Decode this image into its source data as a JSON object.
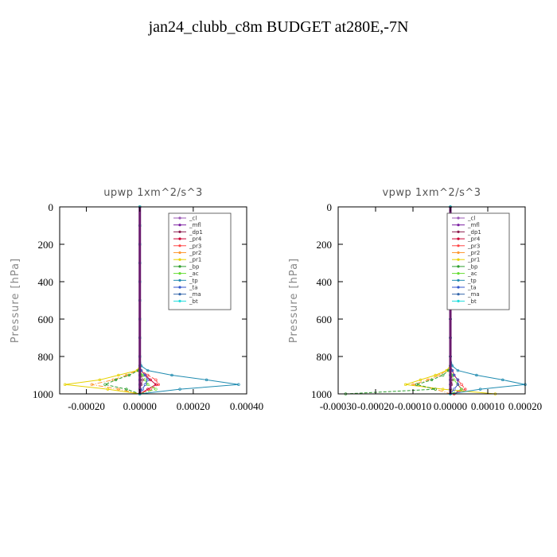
{
  "figure": {
    "title": "jan24_clubb_c8m  BUDGET at280E,-7N"
  },
  "chart_data": [
    {
      "type": "line",
      "title": "upwp   1xm^2/s^3",
      "ylabel": "Pressure [hPa]",
      "xlabel": "",
      "xlim": [
        -0.0003,
        0.0004
      ],
      "ylim": [
        1000,
        0
      ],
      "xticks": [
        -0.0002,
        0.0,
        0.0002,
        0.0004
      ],
      "xtick_labels": [
        "-0.00020",
        "0.00000",
        "0.00020",
        "0.00040"
      ],
      "yticks": [
        0,
        200,
        400,
        600,
        800,
        1000
      ],
      "ytick_labels": [
        "0",
        "200",
        "400",
        "600",
        "800",
        "1000"
      ],
      "grid": false,
      "legend_position": "top-right",
      "pressure": [
        0,
        100,
        200,
        300,
        400,
        500,
        600,
        700,
        800,
        850,
        875,
        900,
        925,
        950,
        975,
        1000
      ],
      "series": [
        {
          "name": "_cl",
          "color": "#9b59b6",
          "values": [
            0,
            0,
            0,
            0,
            0,
            0,
            0,
            0,
            0,
            0,
            0,
            0,
            0,
            0,
            0,
            0
          ]
        },
        {
          "name": "_mfl",
          "color": "#7b1fa2",
          "values": [
            0,
            0,
            0,
            0,
            0,
            0,
            0,
            0,
            0,
            0,
            0,
            0,
            0,
            0,
            0,
            0
          ]
        },
        {
          "name": "_dp1",
          "color": "#8e2050",
          "values": [
            0,
            0,
            0,
            0,
            0,
            0,
            0,
            0,
            0,
            0,
            0,
            5e-06,
            1e-05,
            5e-06,
            0,
            0
          ]
        },
        {
          "name": "_pr4",
          "color": "#cc0033",
          "values": [
            0,
            0,
            0,
            0,
            0,
            0,
            0,
            0,
            0,
            0,
            5e-06,
            2e-05,
            4e-05,
            6e-05,
            3e-05,
            0
          ]
        },
        {
          "name": "_pr3",
          "color": "#ff4444",
          "values": [
            0,
            0,
            0,
            0,
            0,
            0,
            0,
            0,
            0,
            0,
            5e-06,
            3e-05,
            6e-05,
            7e-05,
            4e-05,
            0
          ]
        },
        {
          "name": "_pr2",
          "color": "#ff9933",
          "values": [
            0,
            0,
            0,
            0,
            0,
            0,
            0,
            0,
            0,
            0,
            -1e-05,
            -5e-05,
            -0.0001,
            -0.00018,
            -8e-05,
            0
          ]
        },
        {
          "name": "_pr1",
          "color": "#e6d200",
          "values": [
            0,
            0,
            0,
            0,
            0,
            0,
            0,
            0,
            0,
            0,
            -1e-05,
            -8e-05,
            -0.00015,
            -0.00028,
            -0.00012,
            0
          ]
        },
        {
          "name": "_bp",
          "color": "#2e9e2e",
          "values": [
            0,
            0,
            0,
            0,
            0,
            0,
            0,
            0,
            0,
            0,
            -5e-06,
            -4e-05,
            -9e-05,
            -0.00013,
            -5e-05,
            0
          ]
        },
        {
          "name": "_ac",
          "color": "#66dd33",
          "values": [
            0,
            0,
            0,
            0,
            0,
            0,
            0,
            0,
            0,
            0,
            0,
            1e-05,
            2e-05,
            3e-05,
            6e-05,
            0
          ]
        },
        {
          "name": "_tp",
          "color": "#1f8bb0",
          "values": [
            0,
            0,
            0,
            0,
            0,
            0,
            0,
            0,
            0,
            5e-06,
            3e-05,
            0.00012,
            0.00025,
            0.00037,
            0.00015,
            0
          ]
        },
        {
          "name": "_ta",
          "color": "#3355cc",
          "values": [
            0,
            0,
            0,
            0,
            0,
            0,
            0,
            0,
            0,
            0,
            5e-06,
            2e-05,
            3e-05,
            2e-05,
            1e-05,
            0
          ]
        },
        {
          "name": "_ma",
          "color": "#3366aa",
          "values": [
            0,
            0,
            0,
            0,
            0,
            0,
            0,
            0,
            0,
            0,
            0,
            0,
            0,
            0,
            0,
            0
          ]
        },
        {
          "name": "_bt",
          "color": "#22dddd",
          "values": [
            0,
            0,
            0,
            0,
            0,
            0,
            0,
            0,
            0,
            0,
            0,
            0,
            0,
            0,
            0,
            0
          ]
        }
      ]
    },
    {
      "type": "line",
      "title": "vpwp   1xm^2/s^3",
      "ylabel": "Pressure [hPa]",
      "xlabel": "",
      "xlim": [
        -0.0003,
        0.0002
      ],
      "ylim": [
        1000,
        0
      ],
      "xticks": [
        -0.0003,
        -0.0002,
        -0.0001,
        0.0,
        0.0001,
        0.0002
      ],
      "xtick_labels": [
        "-0.00030",
        "-0.00020",
        "-0.00010",
        "0.00000",
        "0.00010",
        "0.00020"
      ],
      "yticks": [
        0,
        200,
        400,
        600,
        800,
        1000
      ],
      "ytick_labels": [
        "0",
        "200",
        "400",
        "600",
        "800",
        "1000"
      ],
      "grid": false,
      "legend_position": "top-right",
      "pressure": [
        0,
        100,
        200,
        300,
        400,
        500,
        600,
        700,
        800,
        850,
        875,
        900,
        925,
        950,
        975,
        1000
      ],
      "series": [
        {
          "name": "_cl",
          "color": "#9b59b6",
          "values": [
            0,
            0,
            0,
            0,
            0,
            0,
            0,
            0,
            0,
            0,
            0,
            0,
            0,
            0,
            0,
            0
          ]
        },
        {
          "name": "_mfl",
          "color": "#7b1fa2",
          "values": [
            0,
            0,
            0,
            0,
            0,
            0,
            0,
            0,
            0,
            0,
            0,
            0,
            0,
            0,
            0,
            0
          ]
        },
        {
          "name": "_dp1",
          "color": "#8e2050",
          "values": [
            0,
            0,
            0,
            0,
            0,
            0,
            0,
            0,
            0,
            0,
            0,
            3e-06,
            5e-06,
            3e-06,
            0,
            0
          ]
        },
        {
          "name": "_pr4",
          "color": "#cc0033",
          "values": [
            0,
            0,
            0,
            0,
            0,
            0,
            0,
            0,
            0,
            0,
            5e-06,
            1e-05,
            2e-05,
            2e-05,
            3e-05,
            1e-05
          ]
        },
        {
          "name": "_pr3",
          "color": "#ff4444",
          "values": [
            0,
            0,
            0,
            0,
            0,
            0,
            0,
            0,
            0,
            0,
            5e-06,
            1e-05,
            2e-05,
            3e-05,
            4e-05,
            1e-05
          ]
        },
        {
          "name": "_pr2",
          "color": "#ff9933",
          "values": [
            0,
            0,
            0,
            0,
            0,
            0,
            0,
            0,
            0,
            0,
            -1e-05,
            -3e-05,
            -6e-05,
            -0.0001,
            -4e-05,
            0
          ]
        },
        {
          "name": "_pr1",
          "color": "#e6d200",
          "values": [
            0,
            0,
            0,
            0,
            0,
            0,
            0,
            0,
            0,
            0,
            -1e-05,
            -4e-05,
            -8e-05,
            -0.00012,
            -2e-05,
            0.00012
          ]
        },
        {
          "name": "_bp",
          "color": "#2e9e2e",
          "values": [
            0,
            0,
            0,
            0,
            0,
            0,
            0,
            0,
            0,
            0,
            -5e-06,
            -2e-05,
            -5e-05,
            -9e-05,
            -4e-05,
            -0.00028
          ]
        },
        {
          "name": "_ac",
          "color": "#66dd33",
          "values": [
            0,
            0,
            0,
            0,
            0,
            0,
            0,
            0,
            0,
            0,
            0,
            5e-06,
            1e-05,
            2e-05,
            3e-05,
            0
          ]
        },
        {
          "name": "_tp",
          "color": "#1f8bb0",
          "values": [
            0,
            0,
            0,
            0,
            0,
            0,
            0,
            0,
            0,
            5e-06,
            2e-05,
            7e-05,
            0.00014,
            0.0002,
            8e-05,
            0
          ]
        },
        {
          "name": "_ta",
          "color": "#3355cc",
          "values": [
            0,
            0,
            0,
            0,
            0,
            0,
            0,
            0,
            0,
            0,
            5e-06,
            1e-05,
            2e-05,
            2e-05,
            1e-05,
            0
          ]
        },
        {
          "name": "_ma",
          "color": "#3366aa",
          "values": [
            0,
            0,
            0,
            0,
            0,
            0,
            0,
            0,
            0,
            0,
            0,
            0,
            0,
            0,
            0,
            0
          ]
        },
        {
          "name": "_bt",
          "color": "#22dddd",
          "values": [
            0,
            0,
            0,
            0,
            0,
            0,
            0,
            0,
            0,
            0,
            0,
            0,
            0,
            0,
            0,
            0
          ]
        }
      ]
    }
  ]
}
